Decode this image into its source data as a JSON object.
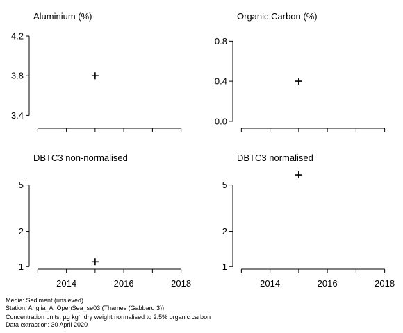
{
  "chart_data": [
    {
      "type": "scatter",
      "title": "Aluminium (%)",
      "x_range": [
        2012.7,
        2018.3
      ],
      "x_ticks": [
        2013,
        2014,
        2015,
        2016,
        2017,
        2018
      ],
      "x_tick_labels": [],
      "ylim": [
        3.27,
        4.27
      ],
      "y_scale": "linear",
      "y_ticks": [
        4.2,
        3.8,
        3.4
      ],
      "y_tick_labels": [
        "4.2",
        "3.8",
        "3.4"
      ],
      "points": [
        {
          "x": 2015,
          "y": 3.8
        }
      ]
    },
    {
      "type": "scatter",
      "title": "Organic Carbon (%)",
      "x_range": [
        2012.7,
        2018.3
      ],
      "x_ticks": [
        2013,
        2014,
        2015,
        2016,
        2017,
        2018
      ],
      "x_tick_labels": [],
      "ylim": [
        -0.07,
        0.92
      ],
      "y_scale": "linear",
      "y_ticks": [
        0.8,
        0.4,
        0.0
      ],
      "y_tick_labels": [
        "0.8",
        "0.4",
        "0.0"
      ],
      "points": [
        {
          "x": 2015,
          "y": 0.4
        }
      ]
    },
    {
      "type": "scatter",
      "title": "DBTC3 non-normalised",
      "x_range": [
        2012.7,
        2018.3
      ],
      "x_ticks": [
        2013,
        2014,
        2015,
        2016,
        2017,
        2018
      ],
      "x_tick_labels": [
        "2014",
        "2016",
        "2018"
      ],
      "ylim": [
        0.95,
        7.0
      ],
      "y_scale": "log",
      "y_ticks": [
        5,
        2,
        1
      ],
      "y_tick_labels": [
        "5",
        "2",
        "1"
      ],
      "points": [
        {
          "x": 2015,
          "y": 1.1
        }
      ]
    },
    {
      "type": "scatter",
      "title": "DBTC3 normalised",
      "x_range": [
        2012.7,
        2018.3
      ],
      "x_ticks": [
        2013,
        2014,
        2015,
        2016,
        2017,
        2018
      ],
      "x_tick_labels": [
        "2014",
        "2016",
        "2018"
      ],
      "ylim": [
        0.95,
        7.0
      ],
      "y_scale": "log",
      "y_ticks": [
        5,
        2,
        1
      ],
      "y_tick_labels": [
        "5",
        "2",
        "1"
      ],
      "points": [
        {
          "x": 2015,
          "y": 6.1
        }
      ]
    }
  ],
  "footer": {
    "media": "Media: Sediment (unsieved)",
    "station": "Station: Anglia_AnOpenSea_se03 (Thames (Gabbard 3))",
    "units_prefix": "Concentration units:  µg kg",
    "units_sup": "-1",
    "units_suffix": " dry weight normalised to 2.5% organic carbon",
    "extraction": "Data extraction: 30 April 2020"
  }
}
